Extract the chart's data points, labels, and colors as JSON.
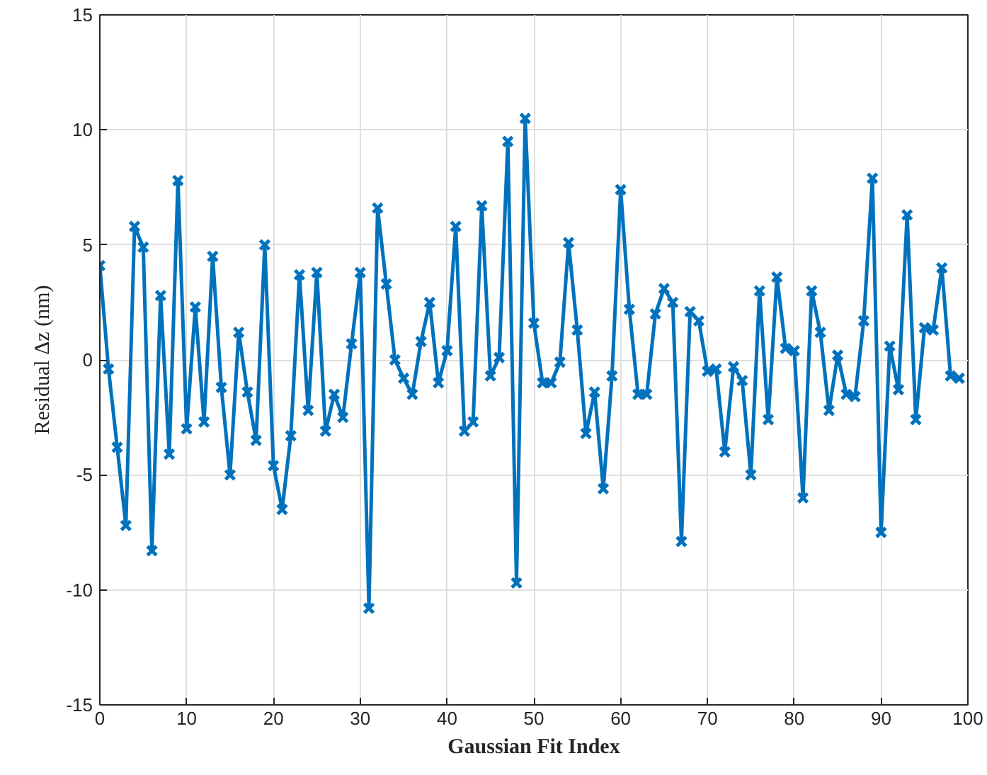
{
  "chart_data": {
    "type": "line",
    "xlabel": "Gaussian Fit Index",
    "ylabel": "Residual Δz (nm)",
    "marker": "cross",
    "line_style": "solid",
    "grid": true,
    "xlim": [
      0,
      100
    ],
    "xticks": [
      0,
      10,
      20,
      30,
      40,
      50,
      60,
      70,
      80,
      90,
      100
    ],
    "ylim": [
      -15,
      15
    ],
    "yticks": [
      -15,
      -10,
      -5,
      0,
      5,
      10,
      15
    ],
    "x": [
      0,
      1,
      2,
      3,
      4,
      5,
      6,
      7,
      8,
      9,
      10,
      11,
      12,
      13,
      14,
      15,
      16,
      17,
      18,
      19,
      20,
      21,
      22,
      23,
      24,
      25,
      26,
      27,
      28,
      29,
      30,
      31,
      32,
      33,
      34,
      35,
      36,
      37,
      38,
      39,
      40,
      41,
      42,
      43,
      44,
      45,
      46,
      47,
      48,
      49,
      50,
      51,
      52,
      53,
      54,
      55,
      56,
      57,
      58,
      59,
      60,
      61,
      62,
      63,
      64,
      65,
      66,
      67,
      68,
      69,
      70,
      71,
      72,
      73,
      74,
      75,
      76,
      77,
      78,
      79,
      80,
      81,
      82,
      83,
      84,
      85,
      86,
      87,
      88,
      89,
      90,
      91,
      92,
      93,
      94,
      95,
      96,
      97,
      98,
      99
    ],
    "series": [
      {
        "color": "#0072bd",
        "values": [
          4.1,
          -0.4,
          -3.8,
          -7.2,
          5.8,
          4.9,
          -8.3,
          2.8,
          -4.1,
          7.8,
          -3.0,
          2.3,
          -2.7,
          4.5,
          -1.2,
          -5.0,
          1.2,
          -1.4,
          -3.5,
          5.0,
          -4.6,
          -6.5,
          -3.3,
          3.7,
          -2.2,
          3.8,
          -3.1,
          -1.5,
          -2.5,
          0.7,
          3.8,
          -10.8,
          6.6,
          3.3,
          0.0,
          -0.8,
          -1.5,
          0.8,
          2.5,
          -1.0,
          0.4,
          5.8,
          -3.1,
          -2.7,
          6.7,
          -0.7,
          0.1,
          9.5,
          -9.7,
          10.5,
          1.6,
          -1.0,
          -1.0,
          -0.1,
          5.1,
          1.3,
          -3.2,
          -1.4,
          -5.6,
          -0.7,
          7.4,
          2.2,
          -1.5,
          -1.5,
          2.0,
          3.1,
          2.5,
          -7.9,
          2.1,
          1.7,
          -0.5,
          -0.4,
          -4.0,
          -0.3,
          -0.9,
          -5.0,
          3.0,
          -2.6,
          3.6,
          0.5,
          0.4,
          -6.0,
          3.0,
          1.2,
          -2.2,
          0.2,
          -1.5,
          -1.6,
          1.7,
          7.9,
          -7.5,
          0.6,
          -1.3,
          6.3,
          -2.6,
          1.4,
          1.3,
          4.0,
          -0.7,
          -0.8
        ]
      }
    ]
  }
}
